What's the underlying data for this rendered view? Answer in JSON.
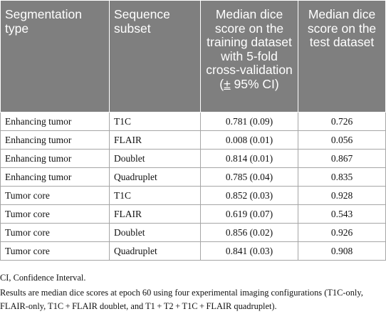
{
  "table": {
    "headers": [
      "Segmentation type",
      "Sequence subset",
      "Median dice score on the training dataset with 5-fold cross-validation (± 95% CI)",
      "Median dice score on the test dataset"
    ],
    "header_main_col3": "Median dice score on the training dataset with 5-fold cross-validation (",
    "header_pm_col3": "±",
    "header_tail_col3": " 95% CI)",
    "rows": [
      [
        "Enhancing tumor",
        "T1C",
        "0.781 (0.09)",
        "0.726"
      ],
      [
        "Enhancing tumor",
        "FLAIR",
        "0.008 (0.01)",
        "0.056"
      ],
      [
        "Enhancing tumor",
        "Doublet",
        "0.814 (0.01)",
        "0.867"
      ],
      [
        "Enhancing tumor",
        "Quadruplet",
        "0.785 (0.04)",
        "0.835"
      ],
      [
        "Tumor core",
        "T1C",
        "0.852 (0.03)",
        "0.928"
      ],
      [
        "Tumor core",
        "FLAIR",
        "0.619 (0.07)",
        "0.543"
      ],
      [
        "Tumor core",
        "Doublet",
        "0.856 (0.02)",
        "0.926"
      ],
      [
        "Tumor core",
        "Quadruplet",
        "0.841 (0.03)",
        "0.908"
      ]
    ]
  },
  "footnotes": {
    "abbreviation": "CI, Confidence Interval.",
    "description": "Results are median dice scores at epoch 60 using four experimental imaging configurations (T1C-only, FLAIR-only, T1C + FLAIR doublet, and T1 + T2 + T1C + FLAIR quadruplet)."
  },
  "colors": {
    "header_bg": "#7f7f7f",
    "header_text": "#ffffff",
    "grid": "#a6a6a6"
  }
}
